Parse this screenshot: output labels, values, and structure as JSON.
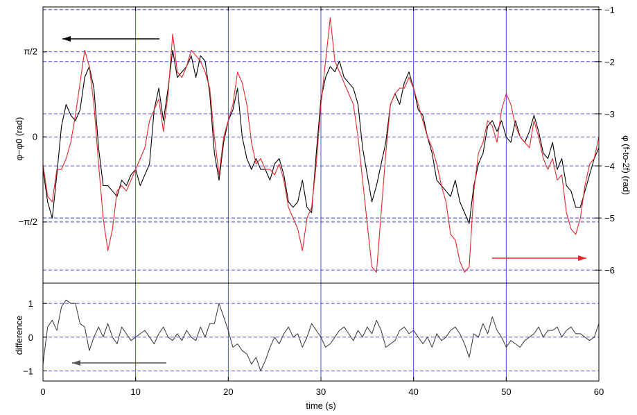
{
  "chart_data": [
    {
      "type": "line",
      "panel": "top",
      "x_range": [
        0,
        60
      ],
      "left_axis": {
        "label": "φ−φ0 (rad)",
        "ticks": [
          {
            "value": 1.5708,
            "label": "π/2"
          },
          {
            "value": 0,
            "label": "0"
          },
          {
            "value": -1.5708,
            "label": "−π/2"
          }
        ],
        "range": [
          -2.7,
          2.4
        ]
      },
      "right_axis": {
        "label": "φ (f-to-2f) (rad)",
        "ticks": [
          -1,
          -2,
          -3,
          -4,
          -5,
          -6
        ],
        "range": [
          -6.25,
          -0.95
        ]
      },
      "grid": true,
      "arrows": [
        {
          "series": "black",
          "direction": "left",
          "color": "#000000"
        },
        {
          "series": "red",
          "direction": "right",
          "color": "#e8262a"
        }
      ],
      "series": [
        {
          "color": "#000000",
          "axis": "left",
          "x": [
            0,
            0.5,
            1,
            1.5,
            2,
            2.5,
            3,
            3.5,
            4,
            4.5,
            5,
            5.5,
            6,
            6.5,
            7,
            7.5,
            8,
            8.5,
            9,
            9.5,
            10,
            10.5,
            11,
            11.5,
            12,
            12.5,
            13,
            13.5,
            14,
            14.5,
            15,
            15.5,
            16,
            16.5,
            17,
            17.5,
            18,
            18.5,
            19,
            19.5,
            20,
            20.5,
            21,
            21.5,
            22,
            22.5,
            23,
            23.5,
            24,
            24.5,
            25,
            25.5,
            26,
            26.5,
            27,
            27.5,
            28,
            28.5,
            29,
            29.5,
            30,
            30.5,
            31,
            31.5,
            32,
            32.5,
            33,
            33.5,
            34,
            34.5,
            35,
            35.5,
            36,
            36.5,
            37,
            37.5,
            38,
            38.5,
            39,
            39.5,
            40,
            40.5,
            41,
            41.5,
            42,
            42.5,
            43,
            43.5,
            44,
            44.5,
            45,
            45.5,
            46,
            46.5,
            47,
            47.5,
            48,
            48.5,
            49,
            49.5,
            50,
            50.5,
            51,
            51.5,
            52,
            52.5,
            53,
            53.5,
            54,
            54.5,
            55,
            55.5,
            56,
            56.5,
            57,
            57.5,
            58,
            58.5,
            59,
            59.5,
            60
          ],
          "y": [
            -0.6,
            -1.2,
            -1.5,
            -0.7,
            0.2,
            0.6,
            0.4,
            0.3,
            0.5,
            1.1,
            1.3,
            0.9,
            -0.2,
            -0.9,
            -0.9,
            -1.0,
            -1.1,
            -0.8,
            -0.9,
            -0.7,
            -0.6,
            -0.9,
            -0.7,
            -0.5,
            0.5,
            0.9,
            0.3,
            0.9,
            1.6,
            1.1,
            1.2,
            1.3,
            1.5,
            1.1,
            1.5,
            1.4,
            0.8,
            -0.3,
            -0.8,
            -0.1,
            0.3,
            0.5,
            0.9,
            0.0,
            -0.4,
            -0.6,
            -0.4,
            -0.6,
            -0.6,
            -0.8,
            -0.5,
            -0.4,
            -0.7,
            -1.2,
            -1.3,
            -1.2,
            -0.8,
            -1.3,
            -1.4,
            -0.3,
            0.7,
            1.1,
            1.3,
            1.2,
            1.4,
            1.1,
            1.0,
            0.9,
            0.6,
            -0.2,
            -0.7,
            -1.2,
            -0.9,
            -0.5,
            -0.1,
            0.6,
            0.8,
            0.6,
            1.0,
            1.2,
            0.9,
            0.5,
            0.4,
            0.0,
            -0.3,
            -0.8,
            -0.9,
            -1.0,
            -1.1,
            -0.8,
            -1.2,
            -1.4,
            -1.6,
            -0.9,
            -0.5,
            -0.3,
            0.2,
            0.3,
            0.1,
            0.3,
            0.0,
            -0.1,
            0.3,
            0.0,
            -0.1,
            0.1,
            0.4,
            0.1,
            -0.3,
            -0.4,
            -0.1,
            -0.6,
            -0.4,
            -0.9,
            -1.0,
            -1.3,
            -1.3,
            -1.0,
            -0.7,
            -0.4,
            -0.2
          ]
        },
        {
          "color": "#e8262a",
          "axis": "left",
          "x": [
            0,
            0.5,
            1,
            1.5,
            2,
            2.5,
            3,
            3.5,
            4,
            4.5,
            5,
            5.5,
            6,
            6.5,
            7,
            7.5,
            8,
            8.5,
            9,
            9.5,
            10,
            10.5,
            11,
            11.5,
            12,
            12.5,
            13,
            13.5,
            14,
            14.5,
            15,
            15.5,
            16,
            16.5,
            17,
            17.5,
            18,
            18.5,
            19,
            19.5,
            20,
            20.5,
            21,
            21.5,
            22,
            22.5,
            23,
            23.5,
            24,
            24.5,
            25,
            25.5,
            26,
            26.5,
            27,
            27.5,
            28,
            28.5,
            29,
            29.5,
            30,
            30.5,
            31,
            31.5,
            32,
            32.5,
            33,
            33.5,
            34,
            34.5,
            35,
            35.5,
            36,
            36.5,
            37,
            37.5,
            38,
            38.5,
            39,
            39.5,
            40,
            40.5,
            41,
            41.5,
            42,
            42.5,
            43,
            43.5,
            44,
            44.5,
            45,
            45.5,
            46,
            46.5,
            47,
            47.5,
            48,
            48.5,
            49,
            49.5,
            50,
            50.5,
            51,
            51.5,
            52,
            52.5,
            53,
            53.5,
            54,
            54.5,
            55,
            55.5,
            56,
            56.5,
            57,
            57.5,
            58,
            58.5,
            59,
            59.5,
            60
          ],
          "y": [
            -0.5,
            -1.1,
            -1.2,
            -0.6,
            -0.6,
            -0.4,
            -0.1,
            0.4,
            1.0,
            1.6,
            1.3,
            0.6,
            -0.5,
            -1.5,
            -2.1,
            -1.7,
            -1.0,
            -0.9,
            -1.0,
            -0.8,
            -0.6,
            -0.4,
            -0.2,
            0.3,
            0.5,
            0.7,
            0.1,
            0.8,
            1.9,
            1.2,
            1.1,
            1.3,
            1.6,
            1.5,
            1.4,
            1.2,
            0.9,
            0.0,
            -0.7,
            0.0,
            0.3,
            0.6,
            1.2,
            1.0,
            0.6,
            -0.1,
            -0.5,
            -0.4,
            -0.6,
            -0.6,
            -0.7,
            -0.5,
            -0.8,
            -1.3,
            -1.5,
            -1.7,
            -2.1,
            -1.5,
            -1.3,
            -0.5,
            0.6,
            1.4,
            2.2,
            1.4,
            1.2,
            1.0,
            0.8,
            0.6,
            0.0,
            -0.8,
            -1.6,
            -2.4,
            -2.5,
            -1.4,
            -0.3,
            0.6,
            0.8,
            0.9,
            0.9,
            1.1,
            0.9,
            0.6,
            0.3,
            0.0,
            -0.2,
            -0.5,
            -0.9,
            -1.2,
            -1.8,
            -1.9,
            -2.3,
            -2.5,
            -2.4,
            -1.0,
            -0.3,
            -0.1,
            0.3,
            0.2,
            -0.1,
            0.5,
            0.8,
            0.6,
            0.2,
            0.0,
            -0.1,
            -0.2,
            0.3,
            0.0,
            -0.4,
            -0.6,
            -0.4,
            -0.8,
            -0.7,
            -1.4,
            -1.7,
            -1.8,
            -1.5,
            -0.9,
            -0.5,
            -0.4,
            0.0
          ]
        }
      ]
    },
    {
      "type": "line",
      "panel": "bottom",
      "x_range": [
        0,
        60
      ],
      "xlabel": "time (s)",
      "ylabel": "difference",
      "ylim": [
        -1.3,
        1.6
      ],
      "x_ticks": [
        0,
        10,
        20,
        30,
        40,
        50,
        60
      ],
      "y_ticks": [
        1,
        0,
        -1
      ],
      "grid": true,
      "arrows": [
        {
          "direction": "left",
          "color": "#555555"
        }
      ],
      "series": [
        {
          "color": "#333333",
          "x": [
            0,
            0.5,
            1,
            1.5,
            2,
            2.5,
            3,
            3.5,
            4,
            4.5,
            5,
            5.5,
            6,
            6.5,
            7,
            7.5,
            8,
            8.5,
            9,
            9.5,
            10,
            10.5,
            11,
            11.5,
            12,
            12.5,
            13,
            13.5,
            14,
            14.5,
            15,
            15.5,
            16,
            16.5,
            17,
            17.5,
            18,
            18.5,
            19,
            19.5,
            20,
            20.5,
            21,
            21.5,
            22,
            22.5,
            23,
            23.5,
            24,
            24.5,
            25,
            25.5,
            26,
            26.5,
            27,
            27.5,
            28,
            28.5,
            29,
            29.5,
            30,
            30.5,
            31,
            31.5,
            32,
            32.5,
            33,
            33.5,
            34,
            34.5,
            35,
            35.5,
            36,
            36.5,
            37,
            37.5,
            38,
            38.5,
            39,
            39.5,
            40,
            40.5,
            41,
            41.5,
            42,
            42.5,
            43,
            43.5,
            44,
            44.5,
            45,
            45.5,
            46,
            46.5,
            47,
            47.5,
            48,
            48.5,
            49,
            49.5,
            50,
            50.5,
            51,
            51.5,
            52,
            52.5,
            53,
            53.5,
            54,
            54.5,
            55,
            55.5,
            56,
            56.5,
            57,
            57.5,
            58,
            58.5,
            59,
            59.5,
            60
          ],
          "y": [
            -0.8,
            0.3,
            0.5,
            0.2,
            0.9,
            1.1,
            1.0,
            1.0,
            0.4,
            0.3,
            -0.4,
            0.0,
            0.3,
            0.0,
            0.4,
            0.0,
            -0.2,
            0.3,
            0.1,
            -0.1,
            0.0,
            0.1,
            0.2,
            0.0,
            -0.2,
            0.1,
            0.3,
            0.0,
            -0.1,
            0.1,
            -0.1,
            0.2,
            0.0,
            -0.1,
            0.3,
            0.0,
            0.4,
            0.4,
            1.0,
            0.6,
            0.2,
            -0.3,
            -0.2,
            -0.4,
            -0.5,
            -0.8,
            -0.6,
            -1.0,
            -0.7,
            -0.3,
            0.0,
            -0.2,
            0.1,
            0.3,
            0.0,
            0.1,
            -0.3,
            0.0,
            0.4,
            0.2,
            0.0,
            -0.3,
            -0.2,
            0.0,
            0.2,
            0.3,
            0.1,
            -0.1,
            0.2,
            0.0,
            0.3,
            0.1,
            0.5,
            0.2,
            -0.3,
            -0.2,
            -0.1,
            0.2,
            0.3,
            0.1,
            0.2,
            0.0,
            -0.2,
            0.0,
            -0.3,
            0.1,
            -0.1,
            0.0,
            0.2,
            0.3,
            0.1,
            -0.2,
            -0.6,
            0.1,
            0.0,
            0.4,
            0.1,
            0.6,
            0.2,
            0.0,
            -0.3,
            -0.1,
            -0.2,
            -0.3,
            -0.1,
            0.0,
            0.1,
            0.3,
            0.0,
            0.2,
            0.2,
            0.3,
            0.0,
            0.2,
            0.3,
            0.1,
            0.1,
            0.0,
            -0.1,
            0.0,
            0.4
          ]
        }
      ]
    }
  ]
}
